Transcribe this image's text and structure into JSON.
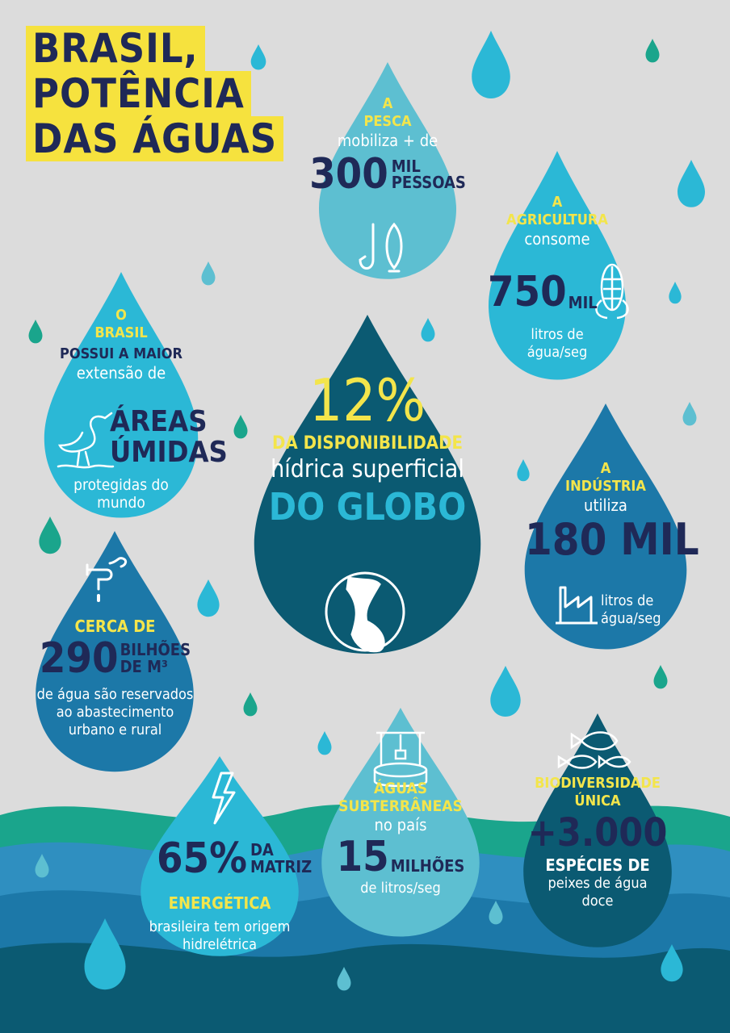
{
  "title_lines": [
    "BRASIL,",
    "POTÊNCIA",
    "DAS ÁGUAS"
  ],
  "pesca": {
    "line1": "A",
    "line2": "PESCA",
    "line3": "mobiliza + de",
    "number": "300",
    "unit1": "MIL",
    "unit2": "PESSOAS",
    "icon": "fishing-hook-fish-icon"
  },
  "agricultura": {
    "line1": "A",
    "line2": "AGRICULTURA",
    "line3": "consome",
    "number": "750",
    "unit": "MIL",
    "line4": "litros de",
    "line5": "água/seg",
    "icon": "corn-icon"
  },
  "areas": {
    "line1": "O",
    "line2": "BRASIL",
    "line3": "POSSUI A MAIOR",
    "line4": "extensão de",
    "big1": "ÁREAS",
    "big2": "ÚMIDAS",
    "line5": "protegidas do",
    "line6": "mundo",
    "icon": "heron-icon"
  },
  "globo": {
    "number": "12%",
    "line1": "DA DISPONIBILIDADE",
    "line2": "hídrica superficial",
    "line3": "DO GLOBO",
    "icon": "globe-icon"
  },
  "industria": {
    "line1": "A",
    "line2": "INDÚSTRIA",
    "line3": "utiliza",
    "number": "180 MIL",
    "line4": "litros de",
    "line5": "água/seg",
    "icon": "factory-icon"
  },
  "urbano": {
    "line1": "CERCA DE",
    "number": "290",
    "unit1": "BILHÕES",
    "unit2": "DE M³",
    "line2": "de água são reservados",
    "line3": "ao abastecimento",
    "line4": "urbano e rural",
    "icon": "faucet-icon"
  },
  "energia": {
    "number": "65%",
    "unit1": "DA",
    "unit2": "MATRIZ",
    "line1": "ENERGÉTICA",
    "line2": "brasileira tem origem",
    "line3": "hidrelétrica",
    "icon": "lightning-icon"
  },
  "subterraneas": {
    "line1": "ÁGUAS",
    "line2": "SUBTERRÂNEAS",
    "line3": "no país",
    "number": "15",
    "unit": "MILHÕES",
    "line4": "de litros/seg",
    "icon": "water-well-icon"
  },
  "biodiversidade": {
    "line1": "BIODIVERSIDADE",
    "line2": "ÚNICA",
    "number": "+3.000",
    "line3": "ESPÉCIES DE",
    "line4": "peixes de água",
    "line5": "doce",
    "icon": "fish-icon"
  },
  "colors": {
    "background": "#dcdcdc",
    "yellow": "#f3e54b",
    "navy": "#1f2957",
    "dark_teal": "#0b5a72",
    "light_blue": "#5dbfd1",
    "mid_blue": "#2f8fc0",
    "green": "#1aa58c"
  }
}
